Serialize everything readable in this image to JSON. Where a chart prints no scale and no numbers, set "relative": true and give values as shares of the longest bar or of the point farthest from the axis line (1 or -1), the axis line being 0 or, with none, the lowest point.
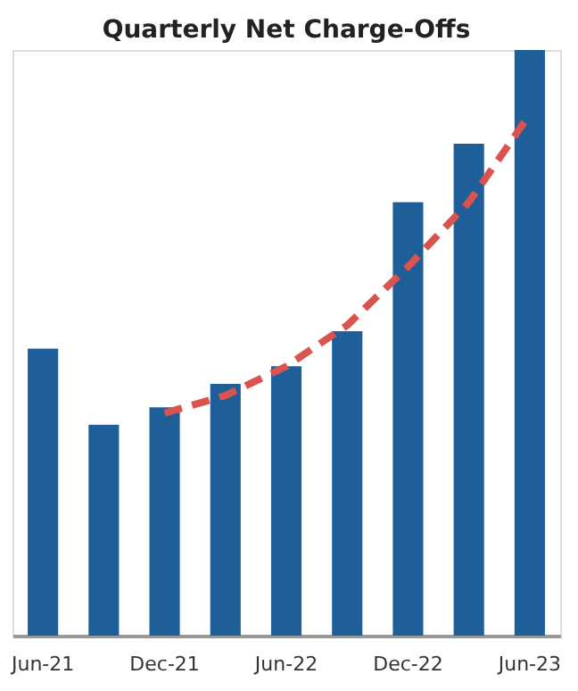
{
  "chart_data": {
    "type": "bar",
    "title": "Quarterly Net Charge-Offs",
    "categories": [
      "Jun-21",
      null,
      "Dec-21",
      null,
      "Jun-22",
      null,
      "Dec-22",
      null,
      "Jun-23"
    ],
    "relative": true,
    "grid": false,
    "series": [
      {
        "color": "#1f5f99",
        "values": [
          0.49,
          0.36,
          0.39,
          0.43,
          0.46,
          0.52,
          0.74,
          0.84,
          1.0
        ]
      },
      {
        "type": "line",
        "color": "#d9534f",
        "line_style": "dashed",
        "marker": "none",
        "values": [
          null,
          null,
          0.38,
          0.41,
          0.46,
          0.53,
          0.63,
          0.74,
          0.89
        ]
      }
    ]
  }
}
